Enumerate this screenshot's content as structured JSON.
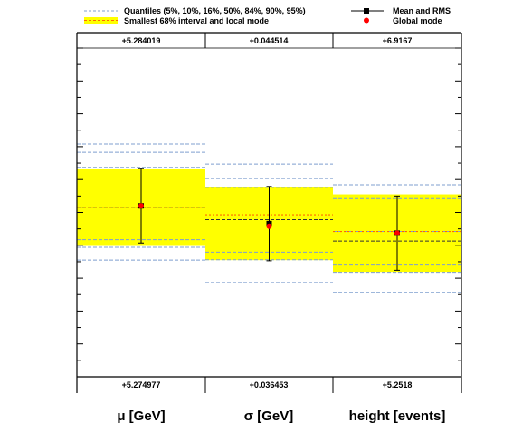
{
  "legend": {
    "quantiles_label": "Quantiles (5%, 10%, 16%, 50%, 84%, 90%, 95%)",
    "interval_label": "Smallest 68% interval and local mode",
    "mean_label": "Mean and RMS",
    "global_mode_label": "Global mode"
  },
  "colors": {
    "band": "#ffff00",
    "quantile_line": "#7f9fcf",
    "mode_line": "#ff6a00",
    "mean_marker": "#000000",
    "global_mode_marker": "#ff0000",
    "axis": "#000000"
  },
  "chart_data": {
    "type": "box",
    "normalized": true,
    "ylim": [
      0,
      1
    ],
    "parameters": [
      {
        "label": "μ [GeV]",
        "range_max": "+5.284019",
        "range_min": "+5.274977",
        "quantiles": {
          "q05": 0.355,
          "q10": 0.394,
          "q16": 0.417,
          "q50": 0.516,
          "q84": 0.637,
          "q90": 0.683,
          "q95": 0.708
        },
        "interval": [
          0.398,
          0.631
        ],
        "local_mode": 0.516,
        "mean": 0.52,
        "rms": 0.113,
        "global_mode": 0.52
      },
      {
        "label": "σ [GeV]",
        "range_max": "+0.044514",
        "range_min": "+0.036453",
        "quantiles": {
          "q05": 0.287,
          "q10": 0.356,
          "q16": 0.379,
          "q50": 0.478,
          "q84": 0.576,
          "q90": 0.603,
          "q95": 0.647
        },
        "interval": [
          0.355,
          0.578
        ],
        "local_mode": 0.493,
        "mean": 0.466,
        "rms": 0.113,
        "global_mode": 0.458
      },
      {
        "label": "height [events]",
        "range_max": "+6.9167",
        "range_min": "+5.2518",
        "quantiles": {
          "q05": 0.257,
          "q10": 0.318,
          "q16": 0.34,
          "q50": 0.413,
          "q84": 0.442,
          "q90": 0.542,
          "q95": 0.584
        },
        "interval": [
          0.319,
          0.555
        ],
        "local_mode": 0.442,
        "mean": 0.437,
        "rms": 0.113,
        "global_mode": 0.437
      }
    ]
  }
}
